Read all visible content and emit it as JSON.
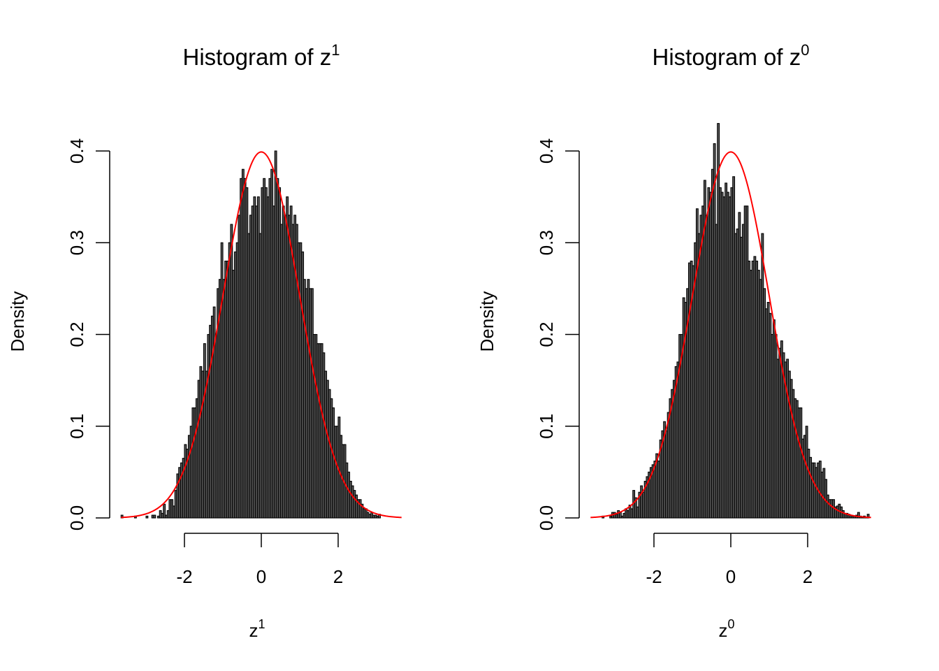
{
  "colors": {
    "bar_fill": "#5a5a5a",
    "bar_border": "#000000",
    "curve": "#ff0000",
    "axis": "#000000"
  },
  "chart_data": [
    {
      "type": "bar",
      "subtype": "histogram",
      "title": "Histogram of z",
      "title_superscript": "1",
      "xlabel": "z",
      "xlabel_superscript": "1",
      "ylabel": "Density",
      "xticks": [
        -2,
        0,
        2
      ],
      "xtick_labels": [
        "-2",
        "0",
        "2"
      ],
      "yticks": [
        0.0,
        0.1,
        0.2,
        0.3,
        0.4
      ],
      "ytick_labels": [
        "0.0",
        "0.1",
        "0.2",
        "0.3",
        "0.4"
      ],
      "ylim": [
        0,
        0.4
      ],
      "grid": false,
      "bin_start": -3.65,
      "bin_width": 0.05,
      "values": [
        0.003,
        0,
        0,
        0,
        0,
        0,
        0,
        0.002,
        0,
        0,
        0,
        0,
        0,
        0.002,
        0,
        0,
        0.003,
        0.003,
        0,
        0.002,
        0.008,
        0.005,
        0.015,
        0.003,
        0.008,
        0.02,
        0.02,
        0.013,
        0.03,
        0.048,
        0.055,
        0.06,
        0.065,
        0.08,
        0.075,
        0.09,
        0.1,
        0.12,
        0.12,
        0.13,
        0.15,
        0.165,
        0.16,
        0.19,
        0.16,
        0.2,
        0.21,
        0.22,
        0.23,
        0.2,
        0.25,
        0.26,
        0.3,
        0.26,
        0.28,
        0.28,
        0.3,
        0.32,
        0.27,
        0.29,
        0.3,
        0.33,
        0.37,
        0.38,
        0.37,
        0.36,
        0.31,
        0.33,
        0.34,
        0.35,
        0.34,
        0.35,
        0.31,
        0.36,
        0.37,
        0.36,
        0.35,
        0.37,
        0.38,
        0.34,
        0.4,
        0.37,
        0.36,
        0.32,
        0.34,
        0.33,
        0.35,
        0.33,
        0.34,
        0.32,
        0.33,
        0.32,
        0.3,
        0.3,
        0.29,
        0.26,
        0.25,
        0.26,
        0.25,
        0.25,
        0.2,
        0.2,
        0.19,
        0.19,
        0.19,
        0.18,
        0.16,
        0.15,
        0.14,
        0.13,
        0.12,
        0.1,
        0.1,
        0.11,
        0.09,
        0.08,
        0.08,
        0.06,
        0.05,
        0.04,
        0.035,
        0.03,
        0.025,
        0.02,
        0.02,
        0.015,
        0.01,
        0.01,
        0.006,
        0.004,
        0.006,
        0.003,
        0.003,
        0.002,
        0.004
      ],
      "curve": {
        "type": "normal-density",
        "mean": 0,
        "sd": 1,
        "range": [
          -3.65,
          3.65
        ]
      }
    },
    {
      "type": "bar",
      "subtype": "histogram",
      "title": "Histogram of z",
      "title_superscript": "0",
      "xlabel": "z",
      "xlabel_superscript": "0",
      "ylabel": "Density",
      "xticks": [
        -2,
        0,
        2
      ],
      "xtick_labels": [
        "-2",
        "0",
        "2"
      ],
      "yticks": [
        0.0,
        0.1,
        0.2,
        0.3,
        0.4
      ],
      "ytick_labels": [
        "0.0",
        "0.1",
        "0.2",
        "0.3",
        "0.4"
      ],
      "ylim": [
        0,
        0.4
      ],
      "grid": false,
      "bin_start": -3.35,
      "bin_width": 0.05,
      "values": [
        0.002,
        0,
        0,
        0,
        0.002,
        0.006,
        0.006,
        0.004,
        0.008,
        0.006,
        0.002,
        0.005,
        0.01,
        0.008,
        0.014,
        0.01,
        0.03,
        0.022,
        0.012,
        0.028,
        0.035,
        0.028,
        0.04,
        0.045,
        0.05,
        0.055,
        0.058,
        0.062,
        0.07,
        0.062,
        0.085,
        0.095,
        0.105,
        0.095,
        0.115,
        0.13,
        0.14,
        0.15,
        0.165,
        0.17,
        0.2,
        0.2,
        0.24,
        0.235,
        0.25,
        0.278,
        0.28,
        0.275,
        0.3,
        0.337,
        0.31,
        0.33,
        0.34,
        0.368,
        0.33,
        0.36,
        0.355,
        0.38,
        0.408,
        0.32,
        0.43,
        0.36,
        0.355,
        0.35,
        0.365,
        0.355,
        0.35,
        0.36,
        0.372,
        0.31,
        0.315,
        0.333,
        0.306,
        0.32,
        0.34,
        0.34,
        0.28,
        0.27,
        0.28,
        0.285,
        0.28,
        0.27,
        0.26,
        0.31,
        0.25,
        0.228,
        0.235,
        0.223,
        0.2,
        0.216,
        0.2,
        0.173,
        0.185,
        0.193,
        0.18,
        0.17,
        0.173,
        0.16,
        0.151,
        0.14,
        0.13,
        0.128,
        0.12,
        0.12,
        0.086,
        0.09,
        0.1,
        0.075,
        0.066,
        0.06,
        0.06,
        0.055,
        0.06,
        0.062,
        0.05,
        0.054,
        0.042,
        0.025,
        0.02,
        0.02,
        0.02,
        0.012,
        0.013,
        0.015,
        0.012,
        0.008,
        0.005,
        0.005,
        0.004,
        0.003,
        0.002,
        0.002,
        0.003,
        0.006,
        0.002,
        0.001,
        0.002,
        0.001,
        0.004
      ],
      "curve": {
        "type": "normal-density",
        "mean": 0,
        "sd": 1,
        "range": [
          -3.65,
          3.65
        ]
      }
    }
  ]
}
